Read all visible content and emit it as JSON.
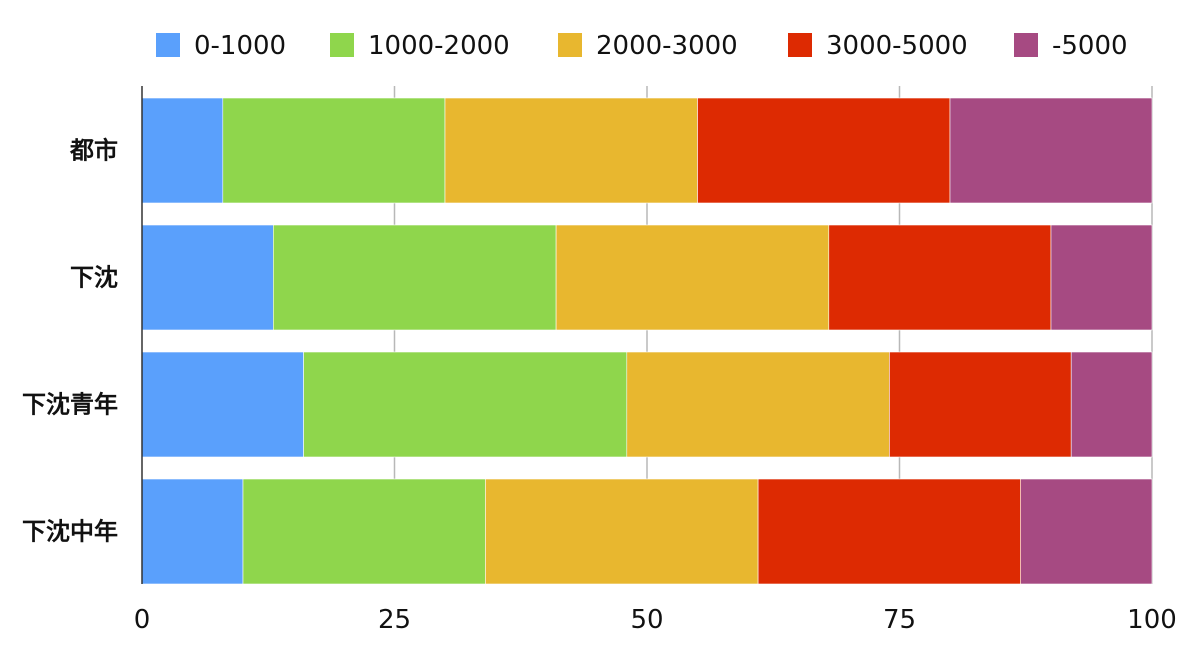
{
  "chart_data": {
    "type": "bar",
    "orientation": "horizontal",
    "stacked": true,
    "title": "",
    "xlabel": "",
    "ylabel": "",
    "xlim": [
      0,
      100
    ],
    "x_ticks": [
      "0",
      "25",
      "50",
      "75",
      "100"
    ],
    "grid": true,
    "legend_position": "top",
    "categories": [
      "都市",
      "下沈",
      "下沈青年",
      "下沈中年"
    ],
    "series": [
      {
        "name": "0-1000",
        "color": "#5aa0fc",
        "values": [
          8,
          13,
          16,
          10
        ]
      },
      {
        "name": "1000-2000",
        "color": "#8fd64c",
        "values": [
          22,
          28,
          32,
          24
        ]
      },
      {
        "name": "2000-3000",
        "color": "#e8b72f",
        "values": [
          25,
          27,
          26,
          27
        ]
      },
      {
        "name": "3000-5000",
        "color": "#dd2a02",
        "values": [
          25,
          22,
          18,
          26
        ]
      },
      {
        "name": "-5000",
        "color": "#a64a82",
        "values": [
          20,
          10,
          8,
          13
        ]
      }
    ]
  }
}
